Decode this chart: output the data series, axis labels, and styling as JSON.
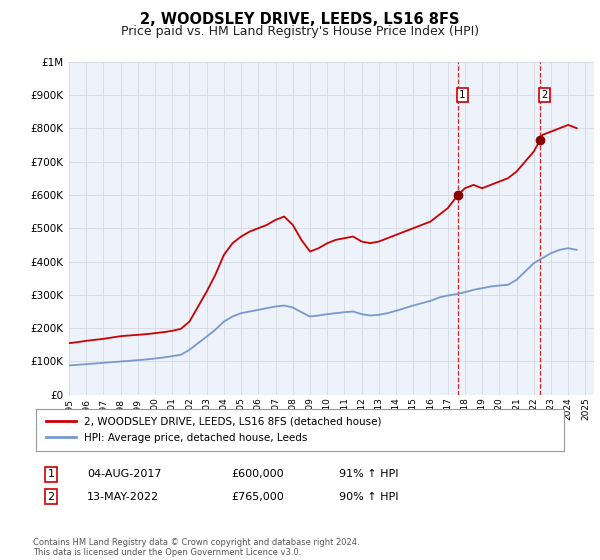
{
  "title": "2, WOODSLEY DRIVE, LEEDS, LS16 8FS",
  "subtitle": "Price paid vs. HM Land Registry's House Price Index (HPI)",
  "legend_label_red": "2, WOODSLEY DRIVE, LEEDS, LS16 8FS (detached house)",
  "legend_label_blue": "HPI: Average price, detached house, Leeds",
  "annotation1_label": "1",
  "annotation1_date": "04-AUG-2017",
  "annotation1_price": "£600,000",
  "annotation1_hpi": "91% ↑ HPI",
  "annotation1_year": 2017.6,
  "annotation1_value": 600000,
  "annotation2_label": "2",
  "annotation2_date": "13-MAY-2022",
  "annotation2_price": "£765,000",
  "annotation2_hpi": "90% ↑ HPI",
  "annotation2_year": 2022.37,
  "annotation2_value": 765000,
  "footer": "Contains HM Land Registry data © Crown copyright and database right 2024.\nThis data is licensed under the Open Government Licence v3.0.",
  "ylim_max": 1000000,
  "xlim_min": 1995,
  "xlim_max": 2025.5,
  "background_color": "#ffffff",
  "plot_bg_color": "#eef2fb",
  "grid_color": "#d8dce8",
  "red_color": "#cc0000",
  "blue_color": "#7799cc",
  "vline_color": "#cc0000",
  "marker_color": "#880000",
  "title_fontsize": 10.5,
  "subtitle_fontsize": 9,
  "red_data_x": [
    1995.0,
    1995.5,
    1996.0,
    1996.5,
    1997.0,
    1997.5,
    1998.0,
    1998.5,
    1999.0,
    1999.5,
    2000.0,
    2000.5,
    2001.0,
    2001.5,
    2002.0,
    2002.5,
    2003.0,
    2003.5,
    2004.0,
    2004.5,
    2005.0,
    2005.5,
    2006.0,
    2006.5,
    2007.0,
    2007.5,
    2008.0,
    2008.5,
    2009.0,
    2009.5,
    2010.0,
    2010.5,
    2011.0,
    2011.5,
    2012.0,
    2012.5,
    2013.0,
    2013.5,
    2014.0,
    2014.5,
    2015.0,
    2015.5,
    2016.0,
    2016.5,
    2017.0,
    2017.6,
    2018.0,
    2018.5,
    2019.0,
    2019.5,
    2020.0,
    2020.5,
    2021.0,
    2021.5,
    2022.0,
    2022.37,
    2022.5,
    2023.0,
    2023.5,
    2024.0,
    2024.5
  ],
  "red_data_y": [
    155000,
    158000,
    162000,
    165000,
    168000,
    172000,
    176000,
    178000,
    180000,
    182000,
    185000,
    188000,
    192000,
    198000,
    220000,
    265000,
    310000,
    360000,
    420000,
    455000,
    475000,
    490000,
    500000,
    510000,
    525000,
    535000,
    510000,
    465000,
    430000,
    440000,
    455000,
    465000,
    470000,
    475000,
    460000,
    455000,
    460000,
    470000,
    480000,
    490000,
    500000,
    510000,
    520000,
    540000,
    560000,
    600000,
    620000,
    630000,
    620000,
    630000,
    640000,
    650000,
    670000,
    700000,
    730000,
    765000,
    780000,
    790000,
    800000,
    810000,
    800000
  ],
  "blue_data_x": [
    1995.0,
    1995.5,
    1996.0,
    1996.5,
    1997.0,
    1997.5,
    1998.0,
    1998.5,
    1999.0,
    1999.5,
    2000.0,
    2000.5,
    2001.0,
    2001.5,
    2002.0,
    2002.5,
    2003.0,
    2003.5,
    2004.0,
    2004.5,
    2005.0,
    2005.5,
    2006.0,
    2006.5,
    2007.0,
    2007.5,
    2008.0,
    2008.5,
    2009.0,
    2009.5,
    2010.0,
    2010.5,
    2011.0,
    2011.5,
    2012.0,
    2012.5,
    2013.0,
    2013.5,
    2014.0,
    2014.5,
    2015.0,
    2015.5,
    2016.0,
    2016.5,
    2017.0,
    2017.5,
    2018.0,
    2018.5,
    2019.0,
    2019.5,
    2020.0,
    2020.5,
    2021.0,
    2021.5,
    2022.0,
    2022.5,
    2023.0,
    2023.5,
    2024.0,
    2024.5
  ],
  "blue_data_y": [
    88000,
    90000,
    92000,
    94000,
    96000,
    98000,
    100000,
    102000,
    104000,
    106000,
    109000,
    112000,
    116000,
    120000,
    135000,
    155000,
    175000,
    195000,
    220000,
    235000,
    245000,
    250000,
    255000,
    260000,
    265000,
    268000,
    262000,
    248000,
    235000,
    238000,
    242000,
    245000,
    248000,
    250000,
    242000,
    238000,
    240000,
    245000,
    252000,
    260000,
    268000,
    275000,
    282000,
    292000,
    298000,
    302000,
    308000,
    315000,
    320000,
    325000,
    328000,
    330000,
    345000,
    370000,
    395000,
    410000,
    425000,
    435000,
    440000,
    435000
  ]
}
